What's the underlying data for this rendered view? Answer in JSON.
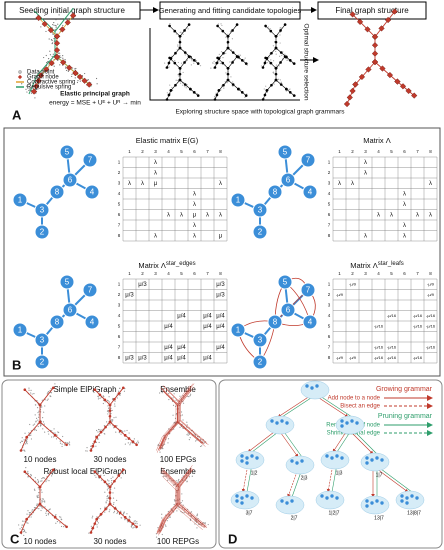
{
  "panel_a": {
    "label": "A",
    "steps": [
      "Seeding initial graph structure",
      "Generating and fitting candidate topologies",
      "Final graph structure"
    ],
    "side_label": "Optimal structure selection",
    "legend": [
      "Data point",
      "Graph node",
      "Contractive spring",
      "Repulsive spring"
    ],
    "energy_title": "Elastic principal graph",
    "energy": "energy = MSE + Uᴱ + Uᴿ → min",
    "explore": "Exploring structure space with topological graph grammars"
  },
  "panel_b": {
    "label": "B",
    "nodes": [
      "1",
      "2",
      "3",
      "4",
      "5",
      "6",
      "7",
      "8"
    ],
    "matrices": [
      {
        "title": "Elastic matrix E(G)",
        "sup": null,
        "rows": [
          [
            null,
            null,
            "λ",
            null,
            null,
            null,
            null,
            null
          ],
          [
            null,
            null,
            "λ",
            null,
            null,
            null,
            null,
            null
          ],
          [
            "λ",
            "λ",
            "μ",
            null,
            null,
            null,
            null,
            "λ"
          ],
          [
            null,
            null,
            null,
            null,
            null,
            "λ",
            null,
            null
          ],
          [
            null,
            null,
            null,
            null,
            null,
            "λ",
            null,
            null
          ],
          [
            null,
            null,
            null,
            "λ",
            "λ",
            "μ",
            "λ",
            "λ"
          ],
          [
            null,
            null,
            null,
            null,
            null,
            "λ",
            null,
            null
          ],
          [
            null,
            null,
            "λ",
            null,
            null,
            "λ",
            null,
            "μ"
          ]
        ]
      },
      {
        "title": "Matrix Λ",
        "sup": null,
        "rows": [
          [
            null,
            null,
            "λ",
            null,
            null,
            null,
            null,
            null
          ],
          [
            null,
            null,
            "λ",
            null,
            null,
            null,
            null,
            null
          ],
          [
            "λ",
            "λ",
            null,
            null,
            null,
            null,
            null,
            "λ"
          ],
          [
            null,
            null,
            null,
            null,
            null,
            "λ",
            null,
            null
          ],
          [
            null,
            null,
            null,
            null,
            null,
            "λ",
            null,
            null
          ],
          [
            null,
            null,
            null,
            "λ",
            "λ",
            null,
            "λ",
            "λ"
          ],
          [
            null,
            null,
            null,
            null,
            null,
            "λ",
            null,
            null
          ],
          [
            null,
            null,
            "λ",
            null,
            null,
            "λ",
            null,
            null
          ]
        ]
      },
      {
        "title": "Matrix Λ",
        "sup": "star_edges",
        "rows": [
          [
            null,
            "μ/3",
            null,
            null,
            null,
            null,
            null,
            "μ/3"
          ],
          [
            "μ/3",
            null,
            null,
            null,
            null,
            null,
            null,
            "μ/3"
          ],
          [
            null,
            null,
            null,
            null,
            null,
            null,
            null,
            null
          ],
          [
            null,
            null,
            null,
            null,
            "μ/4",
            null,
            "μ/4",
            "μ/4"
          ],
          [
            null,
            null,
            null,
            "μ/4",
            null,
            null,
            "μ/4",
            "μ/4"
          ],
          [
            null,
            null,
            null,
            null,
            null,
            null,
            null,
            null
          ],
          [
            null,
            null,
            null,
            "μ/4",
            "μ/4",
            null,
            null,
            "μ/4"
          ],
          [
            "μ/3",
            "μ/3",
            null,
            "μ/4",
            "μ/4",
            null,
            "μ/4",
            null
          ]
        ]
      },
      {
        "title": "Matrix Λ",
        "sup": "star_leafs",
        "rows": [
          [
            null,
            "-μ/9",
            null,
            null,
            null,
            null,
            null,
            "-μ/9"
          ],
          [
            "-μ/9",
            null,
            null,
            null,
            null,
            null,
            null,
            "-μ/9"
          ],
          [
            null,
            null,
            null,
            null,
            null,
            null,
            null,
            null
          ],
          [
            null,
            null,
            null,
            null,
            "-μ/16",
            null,
            "-μ/16",
            "-μ/16"
          ],
          [
            null,
            null,
            null,
            "-μ/16",
            null,
            null,
            "-μ/16",
            "-μ/16"
          ],
          [
            null,
            null,
            null,
            null,
            null,
            null,
            null,
            null
          ],
          [
            null,
            null,
            null,
            "-μ/16",
            "-μ/16",
            null,
            null,
            "-μ/16"
          ],
          [
            "-μ/9",
            "-μ/9",
            null,
            "-μ/16",
            "-μ/16",
            null,
            "-μ/16",
            null
          ]
        ]
      }
    ]
  },
  "panel_c": {
    "label": "C",
    "rows": [
      {
        "title": "Simple ElPiGraph",
        "ensemble": "Ensemble",
        "captions": [
          "10 nodes",
          "30 nodes",
          "100 EPGs"
        ]
      },
      {
        "title": "Robust local ElPiGraph",
        "ensemble": "Ensemble",
        "captions": [
          "10 nodes",
          "30 nodes",
          "100 REPGs"
        ]
      }
    ]
  },
  "panel_d": {
    "label": "D",
    "growing": {
      "title": "Growing grammar",
      "items": [
        "Add node to a node",
        "Bisect an edge"
      ]
    },
    "pruning": {
      "title": "Pruning grammar",
      "items": [
        "Remove a leaf node",
        "Shrink internal edge"
      ]
    },
    "tree_labels": [
      "1|2",
      "2|3",
      "1|3",
      "1|7",
      "3|7",
      "2|7",
      "1|2|7",
      "13|7",
      "13|8|7"
    ]
  }
}
